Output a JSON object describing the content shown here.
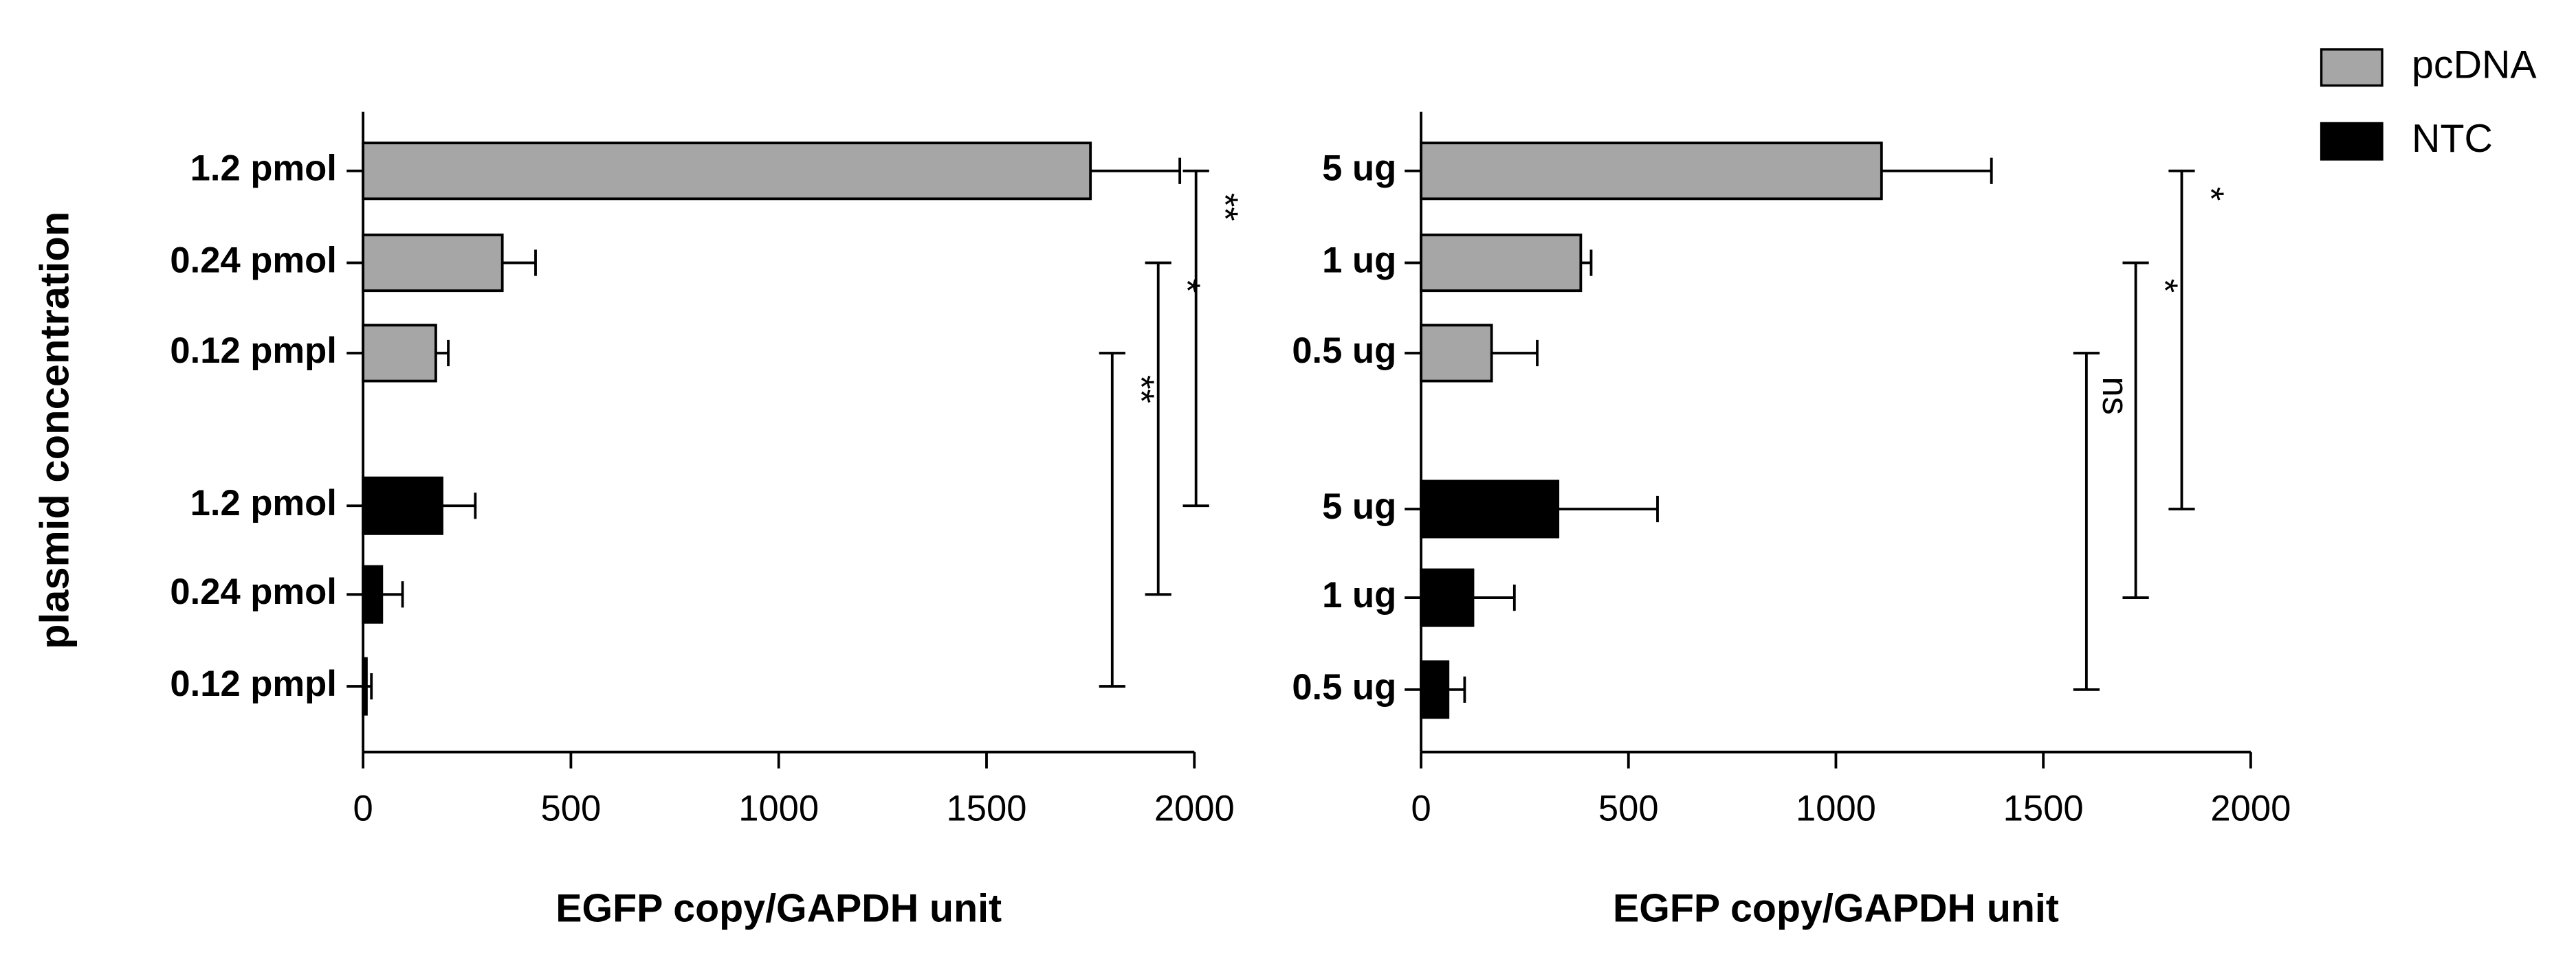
{
  "chart_data": [
    {
      "type": "bar",
      "orientation": "horizontal",
      "ylabel": "plasmid concentration",
      "xlabel": "EGFP copy/GAPDH unit",
      "categories": [
        "1.2 pmol",
        "0.24 pmol",
        "0.12 pmpl",
        "1.2 pmol",
        "0.24 pmol",
        "0.12 pmpl"
      ],
      "series": [
        {
          "name": "pcDNA",
          "color": "#a6a6a6",
          "values": [
            1750,
            335,
            175,
            null,
            null,
            null
          ],
          "errors": [
            215,
            80,
            30,
            null,
            null,
            null
          ]
        },
        {
          "name": "NTC",
          "color": "#000000",
          "values": [
            null,
            null,
            null,
            190,
            45,
            8
          ],
          "errors": [
            null,
            null,
            null,
            80,
            50,
            12
          ]
        }
      ],
      "xlim": [
        0,
        2000
      ],
      "xticks": [
        0,
        500,
        1000,
        1500,
        2000
      ],
      "annotations": [
        {
          "text": "**",
          "from": 0,
          "to": 3
        },
        {
          "text": "*",
          "from": 1,
          "to": 4
        },
        {
          "text": "**",
          "from": 2,
          "to": 5
        }
      ]
    },
    {
      "type": "bar",
      "orientation": "horizontal",
      "xlabel": "EGFP copy/GAPDH unit",
      "categories": [
        "5 ug",
        "1 ug",
        "0.5 ug",
        "5 ug",
        "1 ug",
        "0.5 ug"
      ],
      "series": [
        {
          "name": "pcDNA",
          "color": "#a6a6a6",
          "values": [
            1110,
            385,
            170,
            null,
            null,
            null
          ],
          "errors": [
            265,
            25,
            110,
            null,
            null,
            null
          ]
        },
        {
          "name": "NTC",
          "color": "#000000",
          "values": [
            null,
            null,
            null,
            330,
            125,
            65
          ],
          "errors": [
            null,
            null,
            null,
            240,
            100,
            40
          ]
        }
      ],
      "xlim": [
        0,
        2000
      ],
      "xticks": [
        0,
        500,
        1000,
        1500,
        2000
      ],
      "annotations": [
        {
          "text": "*",
          "from": 0,
          "to": 3
        },
        {
          "text": "*",
          "from": 1,
          "to": 4
        },
        {
          "text": "ns",
          "from": 2,
          "to": 5
        }
      ]
    }
  ]
}
